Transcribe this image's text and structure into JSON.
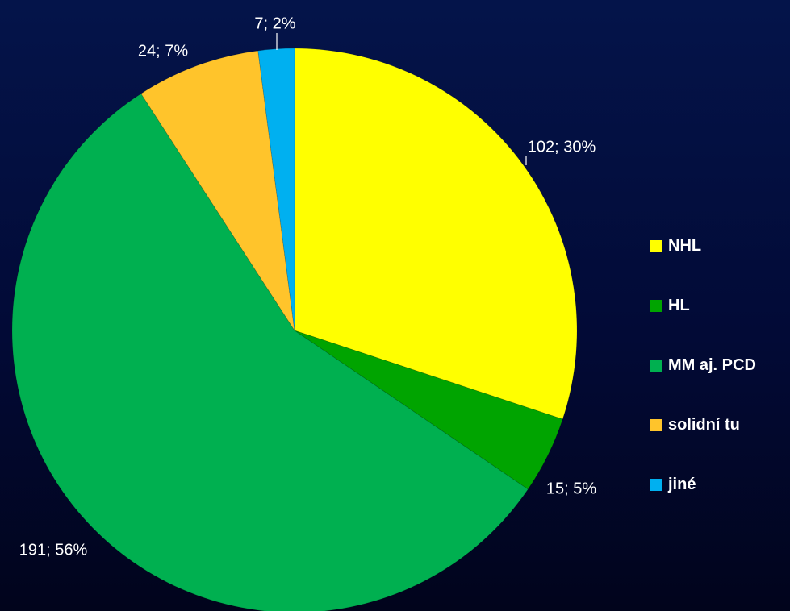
{
  "chart_data": {
    "type": "pie",
    "categories": [
      "NHL",
      "HL",
      "MM aj. PCD",
      "solidní tu",
      "jiné"
    ],
    "values": [
      102,
      15,
      191,
      24,
      7
    ],
    "percentages": [
      30,
      5,
      56,
      7,
      2
    ],
    "data_labels": [
      "102; 30%",
      "15; 5%",
      "191; 56%",
      "24; 7%",
      "7; 2%"
    ],
    "colors": [
      "#ffff00",
      "#00a400",
      "#00b050",
      "#ffc42b",
      "#00b0f0"
    ],
    "legend_position": "right",
    "start_angle": "12 o'clock",
    "direction": "clockwise"
  }
}
